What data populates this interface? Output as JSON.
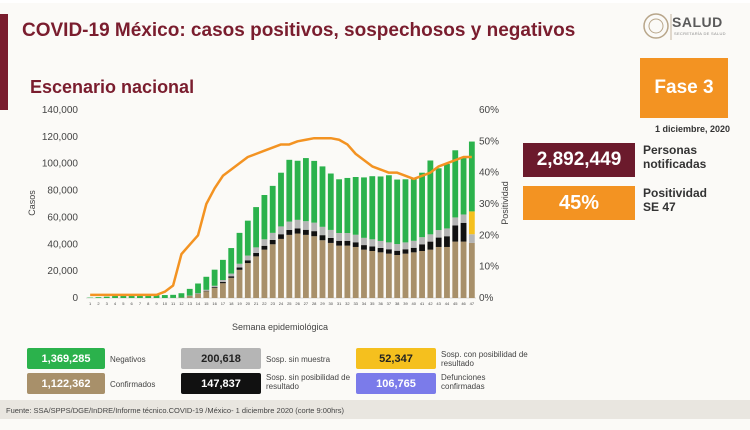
{
  "header": {
    "title": "COVID-19 México: casos positivos, sospechosos y negativos",
    "subtitle": "Escenario nacional",
    "logo_text": "SALUD",
    "logo_sub": "SECRETARÍA DE SALUD"
  },
  "phase": {
    "label": "Fase 3",
    "date": "1 diciembre, 2020"
  },
  "kpis": {
    "notified_value": "2,892,449",
    "notified_label_1": "Personas",
    "notified_label_2": "notificadas",
    "positivity_value": "45%",
    "positivity_label_1": "Positividad",
    "positivity_label_2": "SE 47"
  },
  "legend": [
    {
      "value": "1,369,285",
      "label": "Negativos",
      "color": "#2bb24c"
    },
    {
      "value": "200,618",
      "label": "Sosp. sin muestra",
      "color": "#b5b5b5"
    },
    {
      "value": "52,347",
      "label": "Sosp. con posibilidad de resultado",
      "color": "#f5c01e"
    },
    {
      "value": "1,122,362",
      "label": "Confirmados",
      "color": "#a8906a"
    },
    {
      "value": "147,837",
      "label": "Sosp. sin posibilidad de resultado",
      "color": "#111111"
    },
    {
      "value": "106,765",
      "label": "Defunciones confirmadas",
      "color": "#7b7bea"
    }
  ],
  "source": "Fuente: SSA/SPPS/DGE/InDRE/Informe técnico.COVID-19 /México- 1 diciembre 2020 (corte 9:00hrs)",
  "colors": {
    "negativos": "#2bb24c",
    "sin_muestra": "#b5b5b5",
    "con_posibilidad": "#f5c01e",
    "confirmados": "#a8906a",
    "sin_posibilidad": "#111111",
    "positividad": "#f39322",
    "brand": "#7a1d2e"
  },
  "chart_data": {
    "type": "bar",
    "xlabel": "Semana epidemiológica",
    "ylabel": "Casos",
    "y2label": "Positividad",
    "ylim": [
      0,
      140000
    ],
    "y_ticks": [
      "0",
      "20,000",
      "40,000",
      "60,000",
      "80,000",
      "100,000",
      "120,000",
      "140,000"
    ],
    "y2lim": [
      0,
      60
    ],
    "y2_ticks": [
      "0%",
      "10%",
      "20%",
      "30%",
      "40%",
      "50%",
      "60%"
    ],
    "categories": [
      "1",
      "2",
      "3",
      "4",
      "5",
      "6",
      "7",
      "8",
      "9",
      "10",
      "11",
      "12",
      "13",
      "14",
      "15",
      "16",
      "17",
      "18",
      "19",
      "20",
      "21",
      "22",
      "23",
      "24",
      "25",
      "26",
      "27",
      "28",
      "29",
      "30",
      "31",
      "32",
      "33",
      "34",
      "35",
      "36",
      "37",
      "38",
      "39",
      "40",
      "41",
      "42",
      "43",
      "44",
      "45",
      "46",
      "47"
    ],
    "series": [
      {
        "name": "Confirmados",
        "values": [
          0,
          0,
          0,
          0,
          0,
          0,
          0,
          0,
          0,
          0,
          50,
          350,
          1500,
          3000,
          5000,
          7500,
          11000,
          15000,
          21000,
          26000,
          31000,
          36000,
          40000,
          44000,
          47000,
          48000,
          47000,
          46000,
          43000,
          41000,
          39000,
          39000,
          38000,
          36000,
          35000,
          34000,
          33000,
          32000,
          33000,
          34000,
          35000,
          36000,
          38000,
          38000,
          42000,
          42000,
          41000
        ]
      },
      {
        "name": "Sosp. sin posibilidad de resultado",
        "values": [
          0,
          0,
          0,
          0,
          0,
          0,
          0,
          0,
          0,
          0,
          0,
          0,
          100,
          200,
          400,
          600,
          900,
          1200,
          1700,
          2100,
          2500,
          2900,
          3200,
          3500,
          3700,
          3800,
          3800,
          3800,
          3800,
          3700,
          3600,
          3600,
          3500,
          3400,
          3400,
          3300,
          3300,
          3200,
          3300,
          3400,
          5000,
          6000,
          7000,
          8000,
          12000,
          14000,
          0
        ]
      },
      {
        "name": "Sosp. sin muestra",
        "values": [
          0,
          0,
          0,
          0,
          0,
          0,
          0,
          0,
          0,
          0,
          0,
          0,
          200,
          400,
          700,
          1000,
          1500,
          2000,
          2800,
          3500,
          4200,
          4800,
          5300,
          5800,
          6200,
          6400,
          6400,
          6300,
          6200,
          6000,
          5800,
          5800,
          5600,
          5400,
          5300,
          5200,
          5100,
          5000,
          5100,
          5200,
          5300,
          5400,
          5600,
          5800,
          6000,
          6200,
          6500
        ]
      },
      {
        "name": "Sosp. con posibilidad de resultado",
        "values": [
          0,
          0,
          0,
          0,
          0,
          0,
          0,
          0,
          0,
          0,
          0,
          0,
          0,
          0,
          0,
          0,
          0,
          0,
          0,
          0,
          0,
          0,
          0,
          0,
          0,
          0,
          0,
          0,
          0,
          0,
          0,
          0,
          0,
          0,
          0,
          0,
          0,
          0,
          0,
          0,
          0,
          0,
          0,
          0,
          0,
          0,
          17000
        ]
      },
      {
        "name": "Negativos",
        "values": [
          300,
          600,
          1000,
          1500,
          2000,
          2200,
          2100,
          2000,
          2100,
          2200,
          2300,
          3200,
          5000,
          7200,
          9700,
          12000,
          15000,
          19000,
          23000,
          26000,
          30000,
          33000,
          35000,
          40000,
          46000,
          44000,
          47000,
          46000,
          45000,
          42000,
          40000,
          41000,
          43000,
          45000,
          47000,
          48000,
          50000,
          48000,
          47000,
          46000,
          48000,
          55000,
          46000,
          48000,
          50000,
          42000,
          52000
        ]
      },
      {
        "name": "Positividad",
        "axis": "right",
        "values": [
          1,
          1,
          1,
          1,
          1,
          1,
          1,
          1,
          1,
          2,
          4,
          14,
          17,
          20,
          30,
          35,
          39,
          41,
          43,
          45,
          46,
          47,
          48,
          49,
          49,
          50,
          50.5,
          51,
          51,
          51,
          50.5,
          49,
          46,
          44,
          42,
          41,
          40,
          40,
          39,
          38,
          39,
          40,
          42,
          43,
          44,
          45,
          45
        ]
      }
    ]
  }
}
